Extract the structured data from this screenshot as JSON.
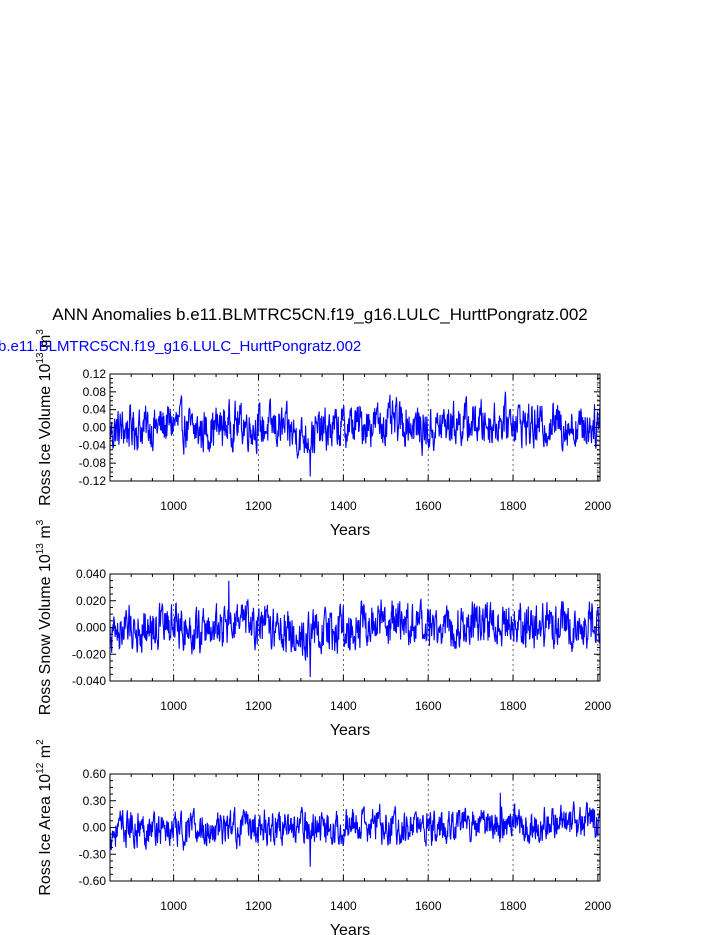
{
  "title": "ANN Anomalies b.e11.BLMTRC5CN.f19_g16.LULC_HurttPongratz.002",
  "case_label": "b.e11.BLMTRC5CN.f19_g16.LULC_HurttPongratz.002",
  "colors": {
    "series": "#0000ff",
    "axes": "#000000",
    "grid": "#000000"
  },
  "chart_data": [
    {
      "type": "line",
      "xlabel": "Years",
      "ylabel": "Ross Ice Volume 10^13 m^3",
      "ylabel_parts": {
        "text": "Ross Ice Volume 10",
        "exp": "13",
        "unit": " m",
        "unit_exp": "3"
      },
      "xlim": [
        850,
        2005
      ],
      "ylim": [
        -0.12,
        0.12
      ],
      "xticks": [
        1000,
        1200,
        1400,
        1600,
        1800,
        2000
      ],
      "yticks": [
        -0.12,
        -0.08,
        -0.04,
        0.0,
        0.04,
        0.08,
        0.12
      ],
      "ytick_labels": [
        "-0.12",
        "-0.08",
        "-0.04",
        "0.00",
        "0.04",
        "0.08",
        "0.12"
      ],
      "grid": "vertical dashed at x ticks",
      "series": [
        {
          "anchors_x": [
            850,
            900,
            950,
            1000,
            1050,
            1100,
            1150,
            1200,
            1250,
            1300,
            1350,
            1400,
            1450,
            1500,
            1550,
            1600,
            1650,
            1700,
            1750,
            1800,
            1850,
            1900,
            1950,
            2000
          ],
          "anchors_mean": [
            -0.01,
            0.0,
            0.0,
            0.01,
            -0.01,
            0.0,
            0.01,
            0.0,
            0.0,
            -0.02,
            -0.01,
            0.0,
            0.01,
            0.01,
            0.01,
            -0.01,
            0.01,
            0.01,
            0.01,
            0.02,
            0.0,
            0.01,
            0.0,
            0.01
          ],
          "amplitude": 0.035,
          "max": 0.11,
          "min": -0.11
        }
      ]
    },
    {
      "type": "line",
      "xlabel": "Years",
      "ylabel": "Ross Snow Volume 10^13 m^3",
      "ylabel_parts": {
        "text": "Ross Snow Volume 10",
        "exp": "13",
        "unit": " m",
        "unit_exp": "3"
      },
      "xlim": [
        850,
        2005
      ],
      "ylim": [
        -0.04,
        0.04
      ],
      "xticks": [
        1000,
        1200,
        1400,
        1600,
        1800,
        2000
      ],
      "yticks": [
        -0.04,
        -0.02,
        0.0,
        0.02,
        0.04
      ],
      "ytick_labels": [
        "-0.040",
        "-0.020",
        "0.000",
        "0.020",
        "0.040"
      ],
      "grid": "vertical dashed at x ticks",
      "series": [
        {
          "anchors_x": [
            850,
            900,
            950,
            1000,
            1050,
            1100,
            1150,
            1200,
            1250,
            1300,
            1350,
            1400,
            1450,
            1500,
            1550,
            1600,
            1650,
            1700,
            1750,
            1800,
            1850,
            1900,
            1950,
            2000
          ],
          "anchors_mean": [
            -0.004,
            0.0,
            0.0,
            0.003,
            -0.003,
            0.0,
            0.003,
            0.0,
            0.0,
            -0.006,
            -0.003,
            0.0,
            0.003,
            0.003,
            0.003,
            -0.003,
            0.003,
            0.003,
            0.003,
            0.006,
            0.0,
            0.003,
            0.0,
            0.003
          ],
          "amplitude": 0.012,
          "max": 0.035,
          "min": -0.037
        }
      ]
    },
    {
      "type": "line",
      "xlabel": "Years",
      "ylabel": "Ross Ice Area 10^12 m^2",
      "ylabel_parts": {
        "text": "Ross Ice Area 10",
        "exp": "12",
        "unit": " m",
        "unit_exp": "2"
      },
      "xlim": [
        850,
        2005
      ],
      "ylim": [
        -0.6,
        0.6
      ],
      "xticks": [
        1000,
        1200,
        1400,
        1600,
        1800,
        2000
      ],
      "yticks": [
        -0.6,
        -0.3,
        0.0,
        0.3,
        0.6
      ],
      "ytick_labels": [
        "-0.60",
        "-0.30",
        "0.00",
        "0.30",
        "0.60"
      ],
      "grid": "vertical dashed at x ticks",
      "series": [
        {
          "anchors_x": [
            850,
            900,
            950,
            1000,
            1050,
            1100,
            1150,
            1200,
            1250,
            1300,
            1350,
            1400,
            1450,
            1500,
            1550,
            1600,
            1650,
            1700,
            1750,
            1800,
            1850,
            1900,
            1950,
            2000
          ],
          "anchors_mean": [
            -0.05,
            0.0,
            0.0,
            -0.05,
            -0.02,
            -0.02,
            0.0,
            0.02,
            0.02,
            0.0,
            0.0,
            0.03,
            0.02,
            0.03,
            0.0,
            -0.02,
            0.03,
            0.04,
            0.05,
            0.05,
            0.03,
            0.05,
            0.04,
            0.03
          ],
          "amplitude": 0.14,
          "max": 0.39,
          "min": -0.44
        }
      ]
    }
  ]
}
